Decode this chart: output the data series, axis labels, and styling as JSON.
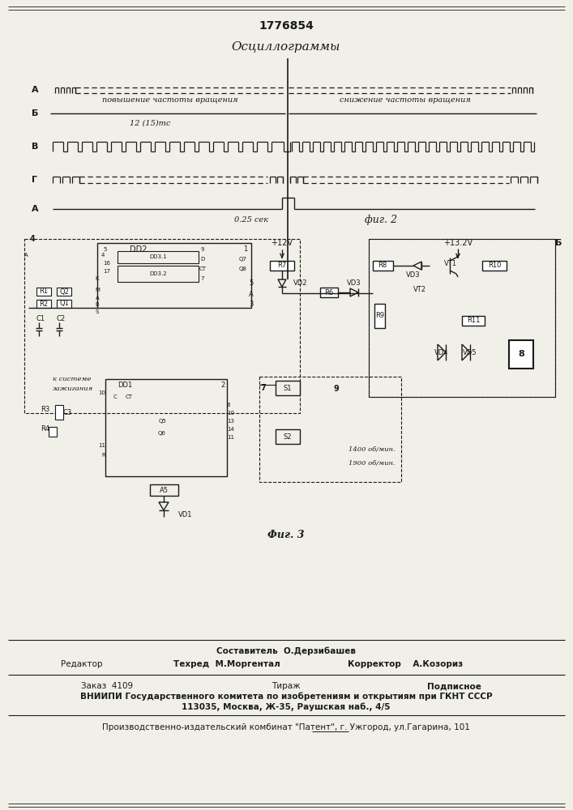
{
  "title": "1776854",
  "oscillogram_title": "Осциллограммы",
  "fig2_label": "фиг. 2",
  "fig3_label": "Фиг. 3",
  "channel_labels": [
    "А",
    "Б",
    "В",
    "Г",
    "А"
  ],
  "text_povyshenie": "повышение частоты вращения",
  "text_snizhenie": "снижение частоты вращения",
  "text_12ms": "12 (15)тс",
  "text_025sec": "0.25 сек",
  "footer_line1": "Составитель  О.Дерзибашев",
  "footer_editor": "Редактор",
  "footer_tehred": "Техред  М.Моргентал",
  "footer_korrektor": "Корректор    А.Козориз",
  "footer_order": "Заказ  4109",
  "footer_tirazh": "Тираж",
  "footer_podpisnoe": "Подписное",
  "footer_vniip": "ВНИИПИ Государственного комитета по изобретениям и открытиям при ГКНТ СССР",
  "footer_addr": "113035, Москва, Ж-35, Раушская наб., 4/5",
  "footer_patent": "Производственно-издательский комбинат \"Патент\", г. Ужгород, ул.Гагарина, 101",
  "bg_color": "#f0efe8",
  "line_color": "#1a1a1a"
}
